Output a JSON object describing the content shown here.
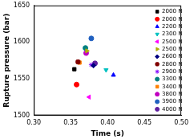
{
  "chart_data": {
    "type": "scatter",
    "x_label": "Time (s)",
    "y_label": "Rupture pressure (bar)",
    "xlim": [
      0.3,
      0.5
    ],
    "xticks": [
      {
        "value": 0.3,
        "label": "0.30"
      },
      {
        "value": 0.35,
        "label": "0.35"
      },
      {
        "value": 0.4,
        "label": "0.40"
      },
      {
        "value": 0.45,
        "label": "0.45"
      },
      {
        "value": 0.5,
        "label": "0.50"
      }
    ],
    "ylim": [
      1500,
      1650
    ],
    "yticks": [
      1500,
      1550,
      1600,
      1650
    ],
    "grid": false,
    "legend": "upper right",
    "series": [
      {
        "name": "2000 N",
        "color": "#000000",
        "marker": "square",
        "x": [
          0.355
        ],
        "values": [
          1563
        ]
      },
      {
        "name": "2000 N",
        "color": "#ff0000",
        "marker": "circle",
        "x": [
          0.358
        ],
        "values": [
          1542
        ]
      },
      {
        "name": "2200 N",
        "color": "#0000ff",
        "marker": "triangle-up",
        "x": [
          0.408
        ],
        "values": [
          1555
        ]
      },
      {
        "name": "2300 N",
        "color": "#00c0c0",
        "marker": "triangle-down",
        "x": [
          0.398
        ],
        "values": [
          1562
        ]
      },
      {
        "name": "2500 N",
        "color": "#ff00ff",
        "marker": "triangle-left",
        "x": [
          0.375
        ],
        "values": [
          1525
        ]
      },
      {
        "name": "2500 N",
        "color": "#b0b000",
        "marker": "triangle-right",
        "x": [
          0.372
        ],
        "values": [
          1588
        ]
      },
      {
        "name": "2600 N",
        "color": "#000080",
        "marker": "diamond",
        "x": [
          0.381
        ],
        "values": [
          1568
        ]
      },
      {
        "name": "2800 N",
        "color": "#800000",
        "marker": "pentagon",
        "x": [
          0.36
        ],
        "values": [
          1573
        ]
      },
      {
        "name": "2900 N",
        "color": "#8000ff",
        "marker": "star",
        "x": [
          0.378
        ],
        "values": [
          1569
        ]
      },
      {
        "name": "3300 N",
        "color": "#008080",
        "marker": "hexagon",
        "x": [
          0.37
        ],
        "values": [
          1592
        ]
      },
      {
        "name": "3400 N",
        "color": "#ff8000",
        "marker": "square",
        "x": [
          0.362
        ],
        "values": [
          1572
        ]
      },
      {
        "name": "3800 N",
        "color": "#c000c0",
        "marker": "circle",
        "x": [
          0.371
        ],
        "values": [
          1585
        ]
      },
      {
        "name": "3900 N",
        "color": "#2060c0",
        "marker": "hexagon",
        "x": [
          0.378
        ],
        "values": [
          1605
        ]
      },
      {
        "name": "4000 N",
        "color": "#6020a0",
        "marker": "circle",
        "x": [
          0.383
        ],
        "values": [
          1571
        ]
      }
    ]
  }
}
